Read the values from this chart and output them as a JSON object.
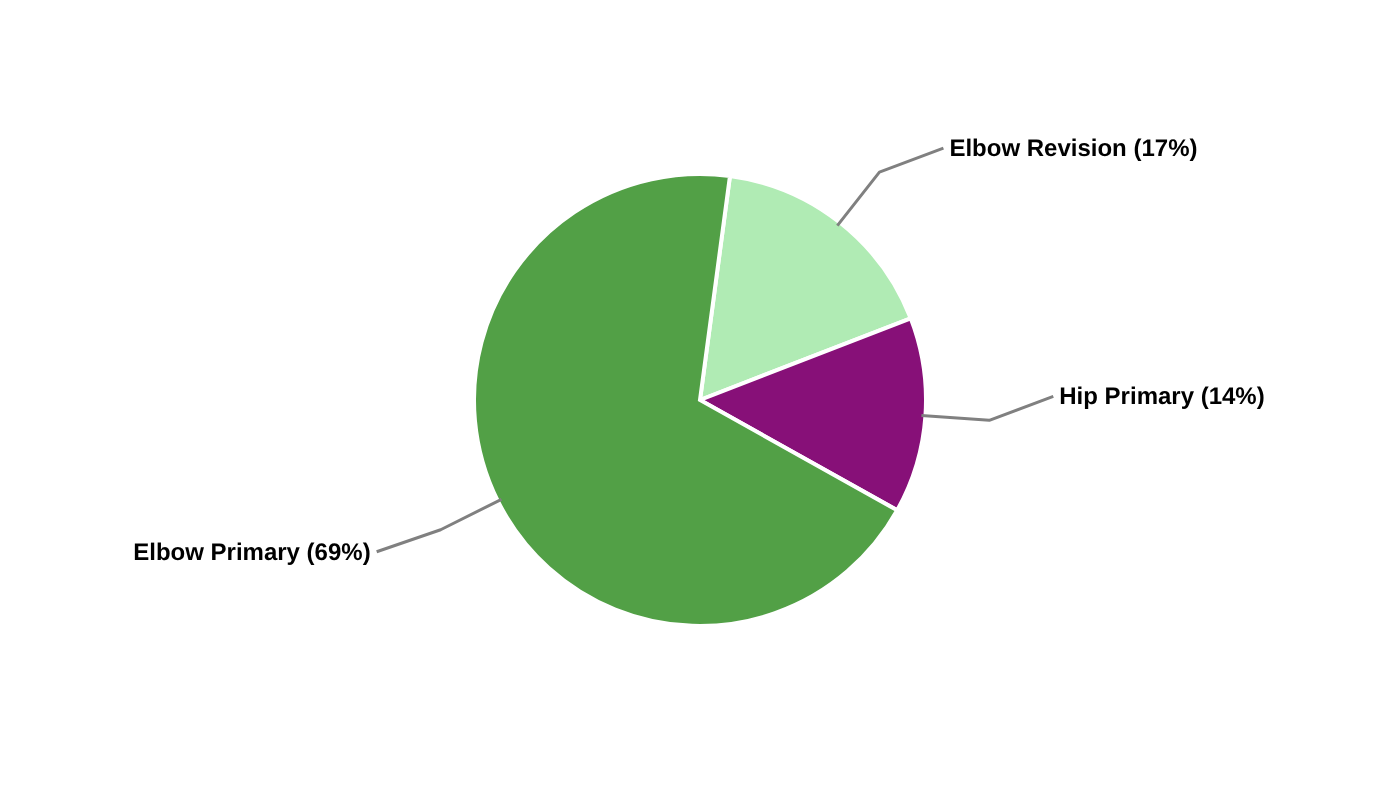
{
  "chart_data": {
    "type": "pie",
    "categories": [
      "Elbow Revision",
      "Hip Primary",
      "Elbow Primary"
    ],
    "values": [
      17,
      14,
      69
    ],
    "colors": [
      "#b0ebb4",
      "#871078",
      "#52a046"
    ],
    "value_labels": [
      "(17%)",
      "(14%)",
      "(69%)"
    ]
  }
}
